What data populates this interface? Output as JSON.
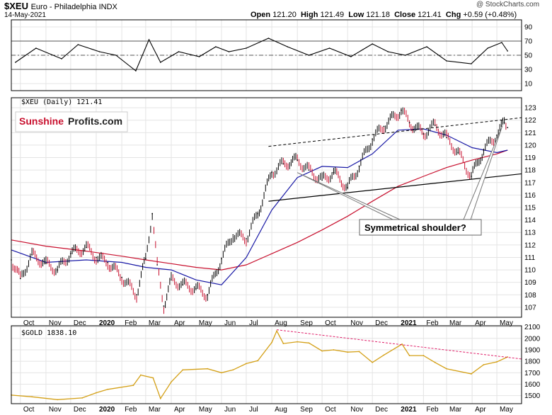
{
  "header": {
    "ticker": "$XEU",
    "name": "Euro - Philadelphia INDX",
    "date": "14-May-2021",
    "watermark": "@ StockCharts.com",
    "open_label": "Open",
    "open": "121.20",
    "high_label": "High",
    "high": "121.49",
    "low_label": "Low",
    "low": "121.18",
    "close_label": "Close",
    "close": "121.41",
    "chg_label": "Chg",
    "chg": "+0.59 (+0.48%)"
  },
  "colors": {
    "price_up": "#000000",
    "price_down": "#c8102e",
    "ma_blue": "#1a1aa6",
    "ma_red": "#c8102e",
    "gold": "#d4a017",
    "gold_trend": "#e0206a",
    "grid": "#e4e4e4"
  },
  "annotations": {
    "logo_part1": "Sunshine",
    "logo_part2": "Profits.com",
    "callout": "Symmetrical shoulder?"
  },
  "chart_data": [
    {
      "type": "line",
      "panel": "indicator",
      "y_ticks": [
        10,
        30,
        50,
        70,
        90
      ],
      "ylim": [
        0,
        100
      ],
      "reference_levels": [
        30,
        50,
        70
      ],
      "x": [
        "2019-09-25",
        "2019-10-20",
        "2019-11-20",
        "2019-12-10",
        "2020-01-05",
        "2020-01-25",
        "2020-02-18",
        "2020-03-05",
        "2020-03-19",
        "2020-04-10",
        "2020-05-05",
        "2020-05-25",
        "2020-06-10",
        "2020-07-01",
        "2020-07-28",
        "2020-08-20",
        "2020-09-15",
        "2020-10-10",
        "2020-11-05",
        "2020-12-01",
        "2020-12-20",
        "2021-01-10",
        "2021-02-05",
        "2021-03-01",
        "2021-03-31",
        "2021-04-20",
        "2021-05-07",
        "2021-05-14"
      ],
      "values": [
        40,
        60,
        45,
        65,
        55,
        50,
        28,
        72,
        40,
        55,
        48,
        62,
        55,
        60,
        74,
        62,
        50,
        60,
        48,
        66,
        55,
        50,
        62,
        42,
        38,
        60,
        68,
        56
      ]
    },
    {
      "type": "line",
      "title": "$XEU (Daily) 121.41",
      "x_tick_labels": [
        "Oct",
        "Nov",
        "Dec",
        "2020",
        "Feb",
        "Mar",
        "Apr",
        "May",
        "Jun",
        "Jul",
        "Aug",
        "Sep",
        "Oct",
        "Nov",
        "Dec",
        "2021",
        "Feb",
        "Mar",
        "Apr",
        "May"
      ],
      "y_ticks": [
        107,
        108,
        109,
        110,
        111,
        112,
        113,
        114,
        115,
        116,
        117,
        118,
        119,
        120,
        121,
        122,
        123
      ],
      "ylim": [
        106.2,
        123.8
      ],
      "series": [
        {
          "x": [
            "2019-09-20",
            "2019-10-01",
            "2019-10-15",
            "2019-11-01",
            "2019-11-15",
            "2019-12-01",
            "2019-12-20",
            "2020-01-01",
            "2020-01-15",
            "2020-02-01",
            "2020-02-19",
            "2020-03-01",
            "2020-03-09",
            "2020-03-15",
            "2020-03-23",
            "2020-04-01",
            "2020-04-15",
            "2020-05-01",
            "2020-05-15",
            "2020-06-01",
            "2020-06-15",
            "2020-07-01",
            "2020-07-15",
            "2020-08-01",
            "2020-08-15",
            "2020-09-01",
            "2020-09-15",
            "2020-10-01",
            "2020-10-15",
            "2020-11-01",
            "2020-11-15",
            "2020-12-01",
            "2020-12-15",
            "2021-01-05",
            "2021-01-15",
            "2021-02-01",
            "2021-02-15",
            "2021-03-01",
            "2021-03-15",
            "2021-03-31",
            "2021-04-15",
            "2021-05-01",
            "2021-05-10",
            "2021-05-14"
          ],
          "values": [
            110.8,
            109.3,
            111.2,
            110.5,
            110.0,
            111.3,
            111.8,
            111.0,
            110.6,
            109.4,
            108.0,
            110.9,
            114.5,
            110.4,
            107.1,
            109.2,
            108.8,
            108.5,
            108.0,
            110.9,
            112.8,
            112.5,
            114.5,
            117.8,
            118.5,
            118.8,
            118.0,
            117.2,
            117.8,
            116.6,
            118.3,
            120.5,
            121.5,
            122.8,
            121.8,
            120.9,
            121.6,
            120.6,
            119.4,
            117.5,
            119.6,
            120.8,
            121.8,
            121.41
          ]
        },
        {
          "x": [
            "2019-09-20",
            "2019-11-01",
            "2019-12-20",
            "2020-02-01",
            "2020-03-01",
            "2020-04-01",
            "2020-05-01",
            "2020-06-01",
            "2020-07-01",
            "2020-08-01",
            "2020-09-01",
            "2020-10-01",
            "2020-11-01",
            "2020-12-01",
            "2021-01-01",
            "2021-02-01",
            "2021-03-01",
            "2021-04-01",
            "2021-05-01",
            "2021-05-14"
          ],
          "values": [
            111.6,
            110.6,
            110.8,
            110.6,
            110.2,
            110.0,
            109.2,
            108.8,
            111.0,
            114.8,
            117.4,
            118.3,
            118.2,
            119.3,
            121.2,
            121.3,
            120.8,
            119.8,
            119.4,
            119.6
          ]
        },
        {
          "x": [
            "2019-09-20",
            "2019-11-01",
            "2019-12-20",
            "2020-02-01",
            "2020-03-01",
            "2020-04-01",
            "2020-05-01",
            "2020-06-01",
            "2020-07-01",
            "2020-08-01",
            "2020-09-01",
            "2020-10-01",
            "2020-11-01",
            "2020-12-01",
            "2021-01-01",
            "2021-02-01",
            "2021-03-01",
            "2021-04-01",
            "2021-05-01",
            "2021-05-14"
          ],
          "values": [
            112.4,
            111.9,
            111.5,
            111.1,
            110.8,
            110.5,
            110.2,
            110.0,
            110.4,
            111.3,
            112.2,
            113.2,
            114.3,
            115.5,
            116.7,
            117.5,
            118.2,
            118.8,
            119.3,
            119.6
          ]
        }
      ],
      "trendlines": [
        {
          "from": [
            "2020-07-28",
            119.9
          ],
          "to": [
            "2021-05-31",
            122.2
          ]
        },
        {
          "from": [
            "2020-07-28",
            115.5
          ],
          "to": [
            "2021-05-31",
            117.7
          ]
        }
      ],
      "callout_targets": [
        [
          "2020-09-01",
          117.8
        ],
        [
          "2021-05-08",
          121.6
        ]
      ]
    },
    {
      "type": "line",
      "title": "$GOLD 1838.10",
      "x_tick_labels": [
        "Oct",
        "Nov",
        "Dec",
        "2020",
        "Feb",
        "Mar",
        "Apr",
        "May",
        "Jun",
        "Jul",
        "Aug",
        "Sep",
        "Oct",
        "Nov",
        "Dec",
        "2021",
        "Feb",
        "Mar",
        "Apr",
        "May"
      ],
      "y_ticks": [
        1500,
        1600,
        1700,
        1800,
        1900,
        2000,
        2100
      ],
      "ylim": [
        1430,
        2110
      ],
      "x": [
        "2019-09-20",
        "2019-10-15",
        "2019-11-15",
        "2019-12-15",
        "2020-01-01",
        "2020-01-15",
        "2020-02-15",
        "2020-02-24",
        "2020-03-10",
        "2020-03-19",
        "2020-04-01",
        "2020-04-15",
        "2020-05-15",
        "2020-06-01",
        "2020-06-15",
        "2020-07-01",
        "2020-07-15",
        "2020-08-01",
        "2020-08-07",
        "2020-08-15",
        "2020-09-01",
        "2020-09-15",
        "2020-10-01",
        "2020-10-15",
        "2020-11-01",
        "2020-11-15",
        "2020-12-01",
        "2020-12-15",
        "2021-01-06",
        "2021-01-15",
        "2021-02-01",
        "2021-02-15",
        "2021-03-01",
        "2021-03-31",
        "2021-04-15",
        "2021-05-01",
        "2021-05-14"
      ],
      "values": [
        1505,
        1490,
        1465,
        1480,
        1525,
        1555,
        1590,
        1680,
        1655,
        1475,
        1620,
        1725,
        1735,
        1700,
        1725,
        1780,
        1805,
        1965,
        2065,
        1955,
        1970,
        1960,
        1890,
        1900,
        1880,
        1885,
        1790,
        1855,
        1950,
        1850,
        1850,
        1790,
        1735,
        1690,
        1770,
        1795,
        1838.1
      ],
      "trendline": {
        "from": [
          "2020-08-07",
          2075
        ],
        "to": [
          "2021-05-31",
          1820
        ]
      }
    }
  ]
}
